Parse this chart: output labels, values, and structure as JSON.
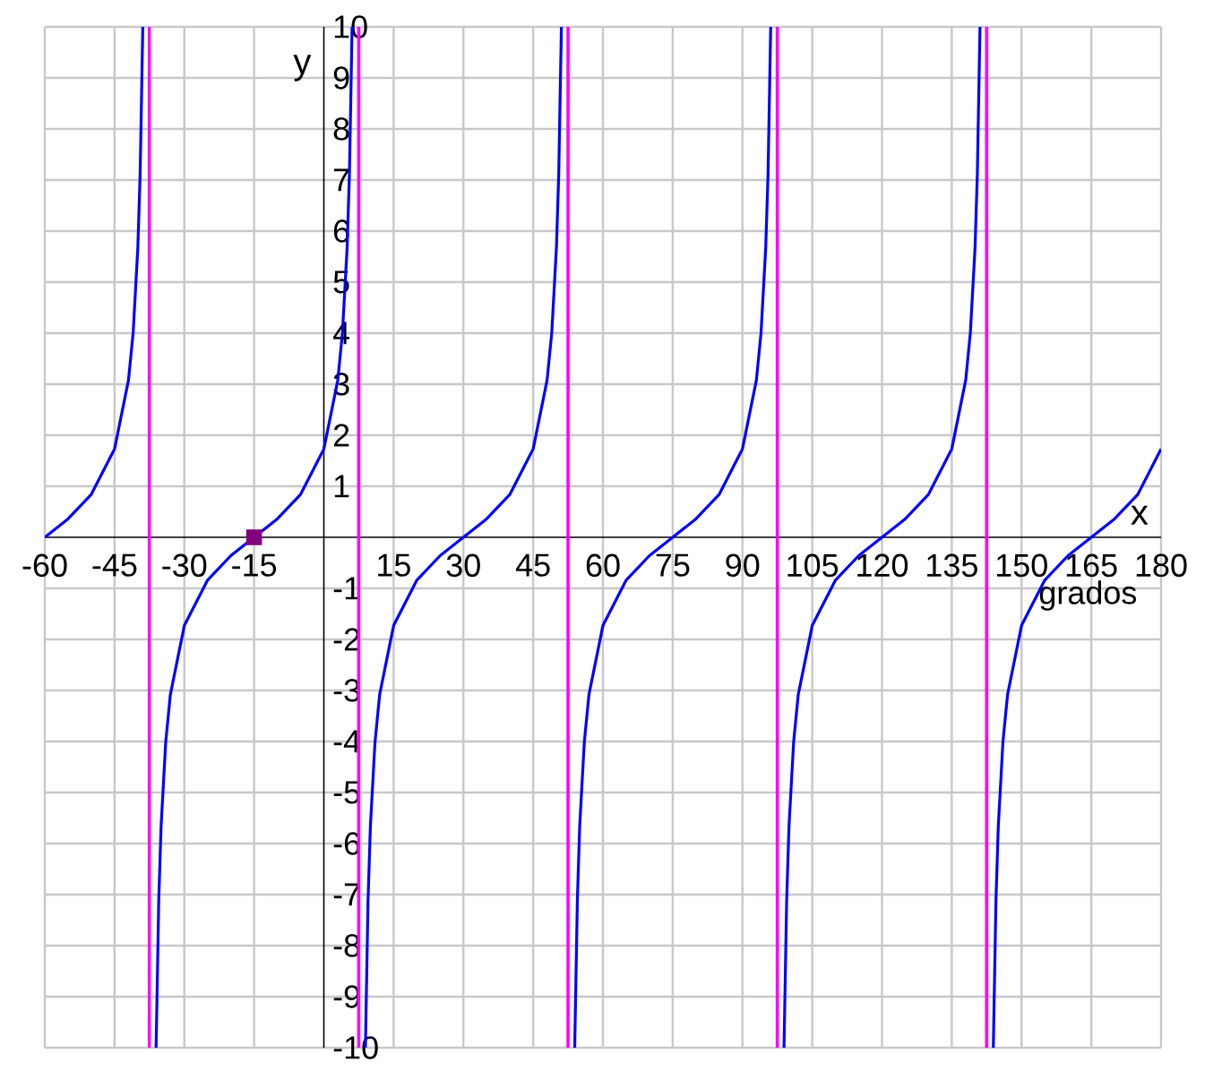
{
  "chart_data": {
    "type": "line",
    "xlabel": "x",
    "ylabel": "y",
    "annotations": [
      "grados"
    ],
    "xlim": [
      -60,
      180
    ],
    "ylim": [
      -10,
      10
    ],
    "xticks": [
      -60,
      -45,
      -30,
      -15,
      {
        "value": 0,
        "label": null
      },
      15,
      30,
      45,
      60,
      75,
      90,
      105,
      120,
      135,
      150,
      165,
      180
    ],
    "yticks": [
      -10,
      -9,
      -8,
      -7,
      -6,
      -5,
      -4,
      -3,
      -2,
      -1,
      1,
      2,
      3,
      4,
      5,
      6,
      7,
      8,
      9,
      10
    ],
    "grid": true,
    "ref_lines": [
      {
        "axis": "x",
        "value": -37.5,
        "color": "#ff00ff"
      },
      {
        "axis": "x",
        "value": 7.5,
        "color": "#ff00ff"
      },
      {
        "axis": "x",
        "value": 52.5,
        "color": "#ff00ff"
      },
      {
        "axis": "x",
        "value": 97.5,
        "color": "#ff00ff"
      },
      {
        "axis": "x",
        "value": 142.5,
        "color": "#ff00ff"
      }
    ],
    "series": [
      {
        "color": "#0000ff",
        "marker": "none",
        "x": [
          -60,
          -55,
          -50,
          -45,
          -42,
          -41,
          -40,
          -39.5,
          -38.93,
          -37.5,
          -36.07,
          -35.5,
          -35,
          -34,
          -33,
          -30,
          -25,
          -20,
          -15,
          -10,
          -5,
          0,
          3,
          4,
          5,
          5.5,
          6.07,
          7.5,
          8.93,
          9.5,
          10,
          11,
          12,
          15,
          20,
          25,
          30,
          35,
          40,
          45,
          48,
          49,
          50,
          50.5,
          51.07,
          52.5,
          53.93,
          54.5,
          55,
          56,
          57,
          60,
          65,
          70,
          75,
          80,
          85,
          90,
          93,
          94,
          95,
          95.5,
          96.07,
          97.5,
          98.93,
          99.5,
          100,
          101,
          102,
          105,
          110,
          115,
          120,
          125,
          130,
          135,
          138,
          139,
          140,
          140.5,
          141.07,
          142.5,
          143.93,
          144.5,
          145,
          146,
          147,
          150,
          155,
          160,
          165,
          170,
          175,
          180
        ],
        "values": [
          0,
          0.36,
          0.84,
          1.73,
          3.08,
          4.01,
          5.67,
          7.12,
          10,
          null,
          -10,
          -7.12,
          -5.67,
          -4.01,
          -3.08,
          -1.73,
          -0.84,
          -0.36,
          0,
          0.36,
          0.84,
          1.73,
          3.08,
          4.01,
          5.67,
          7.12,
          10,
          null,
          -10,
          -7.12,
          -5.67,
          -4.01,
          -3.08,
          -1.73,
          -0.84,
          -0.36,
          0,
          0.36,
          0.84,
          1.73,
          3.08,
          4.01,
          5.67,
          7.12,
          10,
          null,
          -10,
          -7.12,
          -5.67,
          -4.01,
          -3.08,
          -1.73,
          -0.84,
          -0.36,
          0,
          0.36,
          0.84,
          1.73,
          3.08,
          4.01,
          5.67,
          7.12,
          10,
          null,
          -10,
          -7.12,
          -5.67,
          -4.01,
          -3.08,
          -1.73,
          -0.84,
          -0.36,
          0,
          0.36,
          0.84,
          1.73,
          3.08,
          4.01,
          5.67,
          7.12,
          10,
          null,
          -10,
          -7.12,
          -5.67,
          -4.01,
          -3.08,
          -1.73,
          -0.84,
          -0.36,
          0,
          0.36,
          0.84,
          1.73
        ]
      },
      {
        "type": "scatter",
        "color": "#800080",
        "marker": "square",
        "x": [
          -15
        ],
        "values": [
          0
        ]
      }
    ]
  }
}
